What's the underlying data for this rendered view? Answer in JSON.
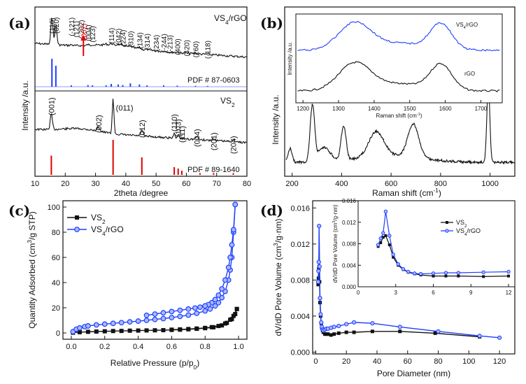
{
  "chart_data": [
    {
      "panel": "(a)",
      "type": "line",
      "xlabel": "2theta /degree",
      "ylabel": "Intensity /a.u.",
      "xlim": [
        10,
        80
      ],
      "xticks": [
        "10",
        "20",
        "30",
        "40",
        "50",
        "60",
        "70",
        "80"
      ],
      "top": {
        "series_label": "VS4/rGO",
        "pdf_label": "PDF # 87-0603",
        "peaks": [
          {
            "x": 15.6,
            "label": "(110)"
          },
          {
            "x": 16.9,
            "label": "(020)"
          },
          {
            "x": 22.0,
            "label": "(-121)"
          },
          {
            "x": 23.5,
            "label": "(121)"
          },
          {
            "x": 25.2,
            "label": "(-202)"
          },
          {
            "x": 26.0,
            "label": "(002)"
          },
          {
            "x": 27.5,
            "label": "(004)"
          },
          {
            "x": 29.0,
            "label": "(123)"
          },
          {
            "x": 35.2,
            "label": "(114)"
          },
          {
            "x": 37.5,
            "label": "(042)"
          },
          {
            "x": 39.0,
            "label": "(224)"
          },
          {
            "x": 41.5,
            "label": "(310)"
          },
          {
            "x": 44.5,
            "label": "(134)"
          },
          {
            "x": 47.0,
            "label": "(314)"
          },
          {
            "x": 50.0,
            "label": "(234)"
          },
          {
            "x": 52.5,
            "label": "(-244)"
          },
          {
            "x": 54.5,
            "label": "(-213)"
          },
          {
            "x": 57.0,
            "label": "(400)"
          },
          {
            "x": 60.0,
            "label": "(420)"
          },
          {
            "x": 63.0,
            "label": "(260)"
          },
          {
            "x": 67.0,
            "label": "(-118)"
          }
        ],
        "ref_lines": [
          [
            15.6,
            1.0
          ],
          [
            16.9,
            0.75
          ],
          [
            22.0,
            0.05
          ],
          [
            27.5,
            0.06
          ],
          [
            29.0,
            0.05
          ],
          [
            33.5,
            0.05
          ],
          [
            35.2,
            0.1
          ],
          [
            37.5,
            0.08
          ],
          [
            39.0,
            0.06
          ],
          [
            41.5,
            0.12
          ],
          [
            44.5,
            0.08
          ],
          [
            47.0,
            0.05
          ],
          [
            52.5,
            0.05
          ],
          [
            57.0,
            0.04
          ],
          [
            63.0,
            0.03
          ],
          [
            67.0,
            0.03
          ]
        ]
      },
      "bottom": {
        "series_label": "VS2",
        "pdf_label": "PDF # 89-1640",
        "peaks": [
          {
            "x": 15.4,
            "label": "(001)"
          },
          {
            "x": 31.0,
            "label": "(002)"
          },
          {
            "x": 35.8,
            "label": "(011)"
          },
          {
            "x": 45.3,
            "label": "(012)"
          },
          {
            "x": 56.0,
            "label": "(110)"
          },
          {
            "x": 57.3,
            "label": "(103)"
          },
          {
            "x": 58.5,
            "label": "(111)"
          },
          {
            "x": 63.5,
            "label": "(004)"
          },
          {
            "x": 69.0,
            "label": "(201)"
          },
          {
            "x": 75.5,
            "label": "(204)"
          }
        ],
        "ref_lines": [
          [
            15.4,
            0.55
          ],
          [
            35.8,
            1.0
          ],
          [
            45.3,
            0.5
          ],
          [
            56.0,
            0.22
          ],
          [
            57.3,
            0.18
          ],
          [
            58.5,
            0.12
          ],
          [
            64.5,
            0.05
          ],
          [
            69.0,
            0.05
          ],
          [
            75.5,
            0.05
          ]
        ]
      }
    },
    {
      "panel": "(b)",
      "type": "line",
      "xlabel": "Raman shift (cm-1)",
      "ylabel": "Intensity /a.u.",
      "series_label": "VS4/rGO",
      "xlim": [
        170,
        1100
      ],
      "xticks": [
        "200",
        "400",
        "600",
        "800",
        "1000"
      ],
      "peaks": [
        [
          192,
          0.18
        ],
        [
          282,
          0.72
        ],
        [
          408,
          0.45
        ],
        [
          540,
          0.32
        ],
        [
          690,
          0.43
        ],
        [
          993,
          1.0
        ]
      ],
      "inset": {
        "xlabel": "Raman shift (cm-1)",
        "ylabel": "Intensity /a.u.",
        "xlim": [
          1180,
          1760
        ],
        "xticks": [
          "1200",
          "1300",
          "1400",
          "1500",
          "1600",
          "1700"
        ],
        "series": [
          {
            "name": "VS4/rGO",
            "color": "#1f3fff"
          },
          {
            "name": "rGO",
            "color": "#111111"
          }
        ],
        "d_band": 1345,
        "g_band": 1588
      }
    },
    {
      "panel": "(c)",
      "type": "line",
      "xlabel": "Relative Pressure (p/p0)",
      "ylabel": "Quantity Adsorbed (cm3/g STP)",
      "xlim": [
        -0.05,
        1.05
      ],
      "ylim": [
        -5,
        105
      ],
      "xticks": [
        "0.0",
        "0.2",
        "0.4",
        "0.6",
        "0.8",
        "1.0"
      ],
      "yticks": [
        "0",
        "20",
        "40",
        "60",
        "80",
        "100"
      ],
      "legend": [
        "VS2",
        "VS4/rGO"
      ],
      "series": [
        {
          "name": "VS2",
          "color": "#111111",
          "adsorption": [
            [
              0.01,
              0.2
            ],
            [
              0.05,
              0.6
            ],
            [
              0.1,
              0.9
            ],
            [
              0.15,
              1.1
            ],
            [
              0.2,
              1.3
            ],
            [
              0.25,
              1.5
            ],
            [
              0.3,
              1.6
            ],
            [
              0.35,
              1.8
            ],
            [
              0.4,
              1.9
            ],
            [
              0.45,
              2.0
            ],
            [
              0.5,
              2.1
            ],
            [
              0.55,
              2.2
            ],
            [
              0.6,
              2.4
            ],
            [
              0.65,
              2.6
            ],
            [
              0.7,
              2.9
            ],
            [
              0.75,
              3.3
            ],
            [
              0.8,
              3.8
            ],
            [
              0.85,
              4.5
            ],
            [
              0.9,
              6.0
            ],
            [
              0.93,
              8.0
            ],
            [
              0.96,
              11.0
            ],
            [
              0.98,
              15.0
            ],
            [
              0.99,
              19.0
            ]
          ],
          "desorption": [
            [
              0.99,
              19.0
            ],
            [
              0.97,
              13.5
            ],
            [
              0.95,
              10.5
            ],
            [
              0.92,
              7.5
            ],
            [
              0.88,
              5.5
            ],
            [
              0.84,
              4.6
            ],
            [
              0.8,
              4.0
            ],
            [
              0.75,
              3.5
            ],
            [
              0.7,
              3.1
            ],
            [
              0.65,
              2.8
            ],
            [
              0.6,
              2.6
            ]
          ]
        },
        {
          "name": "VS4/rGO",
          "color": "#1f3fff",
          "adsorption": [
            [
              0.01,
              1.0
            ],
            [
              0.03,
              3.0
            ],
            [
              0.05,
              4.0
            ],
            [
              0.08,
              5.0
            ],
            [
              0.1,
              5.6
            ],
            [
              0.15,
              6.4
            ],
            [
              0.2,
              7.0
            ],
            [
              0.25,
              7.6
            ],
            [
              0.3,
              8.2
            ],
            [
              0.35,
              8.8
            ],
            [
              0.4,
              9.4
            ],
            [
              0.45,
              10.0
            ],
            [
              0.5,
              10.7
            ],
            [
              0.55,
              11.4
            ],
            [
              0.6,
              12.2
            ],
            [
              0.65,
              13.1
            ],
            [
              0.7,
              14.2
            ],
            [
              0.75,
              15.6
            ],
            [
              0.8,
              17.5
            ],
            [
              0.83,
              19.0
            ],
            [
              0.86,
              21.5
            ],
            [
              0.88,
              24.0
            ],
            [
              0.9,
              28.0
            ],
            [
              0.92,
              33.0
            ],
            [
              0.94,
              42.0
            ],
            [
              0.95,
              50.0
            ],
            [
              0.96,
              60.0
            ],
            [
              0.97,
              80.0
            ],
            [
              0.98,
              102.0
            ]
          ],
          "desorption": [
            [
              0.98,
              102.0
            ],
            [
              0.97,
              82.0
            ],
            [
              0.96,
              70.0
            ],
            [
              0.95,
              60.0
            ],
            [
              0.94,
              52.0
            ],
            [
              0.92,
              42.0
            ],
            [
              0.9,
              35.0
            ],
            [
              0.88,
              30.0
            ],
            [
              0.86,
              26.5
            ],
            [
              0.84,
              24.0
            ],
            [
              0.82,
              22.5
            ],
            [
              0.8,
              21.5
            ],
            [
              0.77,
              20.5
            ],
            [
              0.74,
              19.8
            ],
            [
              0.7,
              19.0
            ],
            [
              0.65,
              18.0
            ],
            [
              0.6,
              17.0
            ],
            [
              0.55,
              16.0
            ],
            [
              0.5,
              15.0
            ],
            [
              0.45,
              14.0
            ]
          ]
        }
      ]
    },
    {
      "panel": "(d)",
      "type": "line",
      "xlabel": "Pore Diameter (nm)",
      "ylabel": "dV/dD Pore Volume (cm3/g·nm)",
      "xlim": [
        -2,
        130
      ],
      "ylim": [
        -0.0002,
        0.0168
      ],
      "xticks": [
        "0",
        "20",
        "40",
        "60",
        "80",
        "100",
        "120"
      ],
      "yticks": [
        "0.000",
        "0.004",
        "0.008",
        "0.012",
        "0.016"
      ],
      "series": [
        {
          "name": "VS2",
          "color": "#111111",
          "points": [
            [
              1.6,
              0.0075
            ],
            [
              1.8,
              0.0082
            ],
            [
              2.0,
              0.0092
            ],
            [
              2.2,
              0.0095
            ],
            [
              2.5,
              0.0078
            ],
            [
              2.8,
              0.0055
            ],
            [
              3.2,
              0.004
            ],
            [
              3.6,
              0.0032
            ],
            [
              4.0,
              0.0027
            ],
            [
              4.5,
              0.0024
            ],
            [
              5.0,
              0.0022
            ],
            [
              6,
              0.002
            ],
            [
              7,
              0.002
            ],
            [
              8,
              0.002
            ],
            [
              10,
              0.0019
            ],
            [
              12,
              0.002
            ],
            [
              15,
              0.0021
            ],
            [
              20,
              0.0022
            ],
            [
              25,
              0.0022
            ],
            [
              37,
              0.0023
            ],
            [
              55,
              0.0023
            ],
            [
              78,
              0.0021
            ],
            [
              107,
              0.0017
            ]
          ]
        },
        {
          "name": "VS4/rGO",
          "color": "#1f3fff",
          "points": [
            [
              1.6,
              0.0078
            ],
            [
              1.8,
              0.009
            ],
            [
              2.0,
              0.01
            ],
            [
              2.2,
              0.014
            ],
            [
              2.5,
              0.0095
            ],
            [
              2.8,
              0.006
            ],
            [
              3.2,
              0.0042
            ],
            [
              3.6,
              0.0033
            ],
            [
              4.0,
              0.0028
            ],
            [
              4.5,
              0.0025
            ],
            [
              5.0,
              0.0024
            ],
            [
              6,
              0.0025
            ],
            [
              7,
              0.0026
            ],
            [
              8,
              0.0026
            ],
            [
              10,
              0.0027
            ],
            [
              12,
              0.0028
            ],
            [
              15,
              0.0029
            ],
            [
              20,
              0.0031
            ],
            [
              25,
              0.0033
            ],
            [
              37,
              0.0032
            ],
            [
              55,
              0.0028
            ],
            [
              80,
              0.0023
            ],
            [
              107,
              0.0018
            ],
            [
              120,
              0.0016
            ]
          ]
        }
      ],
      "inset": {
        "xlabel": "",
        "ylabel": "dV/dD Pore Volume (cm3/g·nm)",
        "xlim": [
          0,
          12.5
        ],
        "ylim": [
          0,
          0.016
        ],
        "xticks": [
          "0",
          "3",
          "6",
          "9",
          "12"
        ],
        "yticks": [
          "0.000",
          "0.004",
          "0.008",
          "0.012",
          "0.016"
        ],
        "legend": [
          "VS2",
          "VS4/rGO"
        ]
      }
    }
  ]
}
